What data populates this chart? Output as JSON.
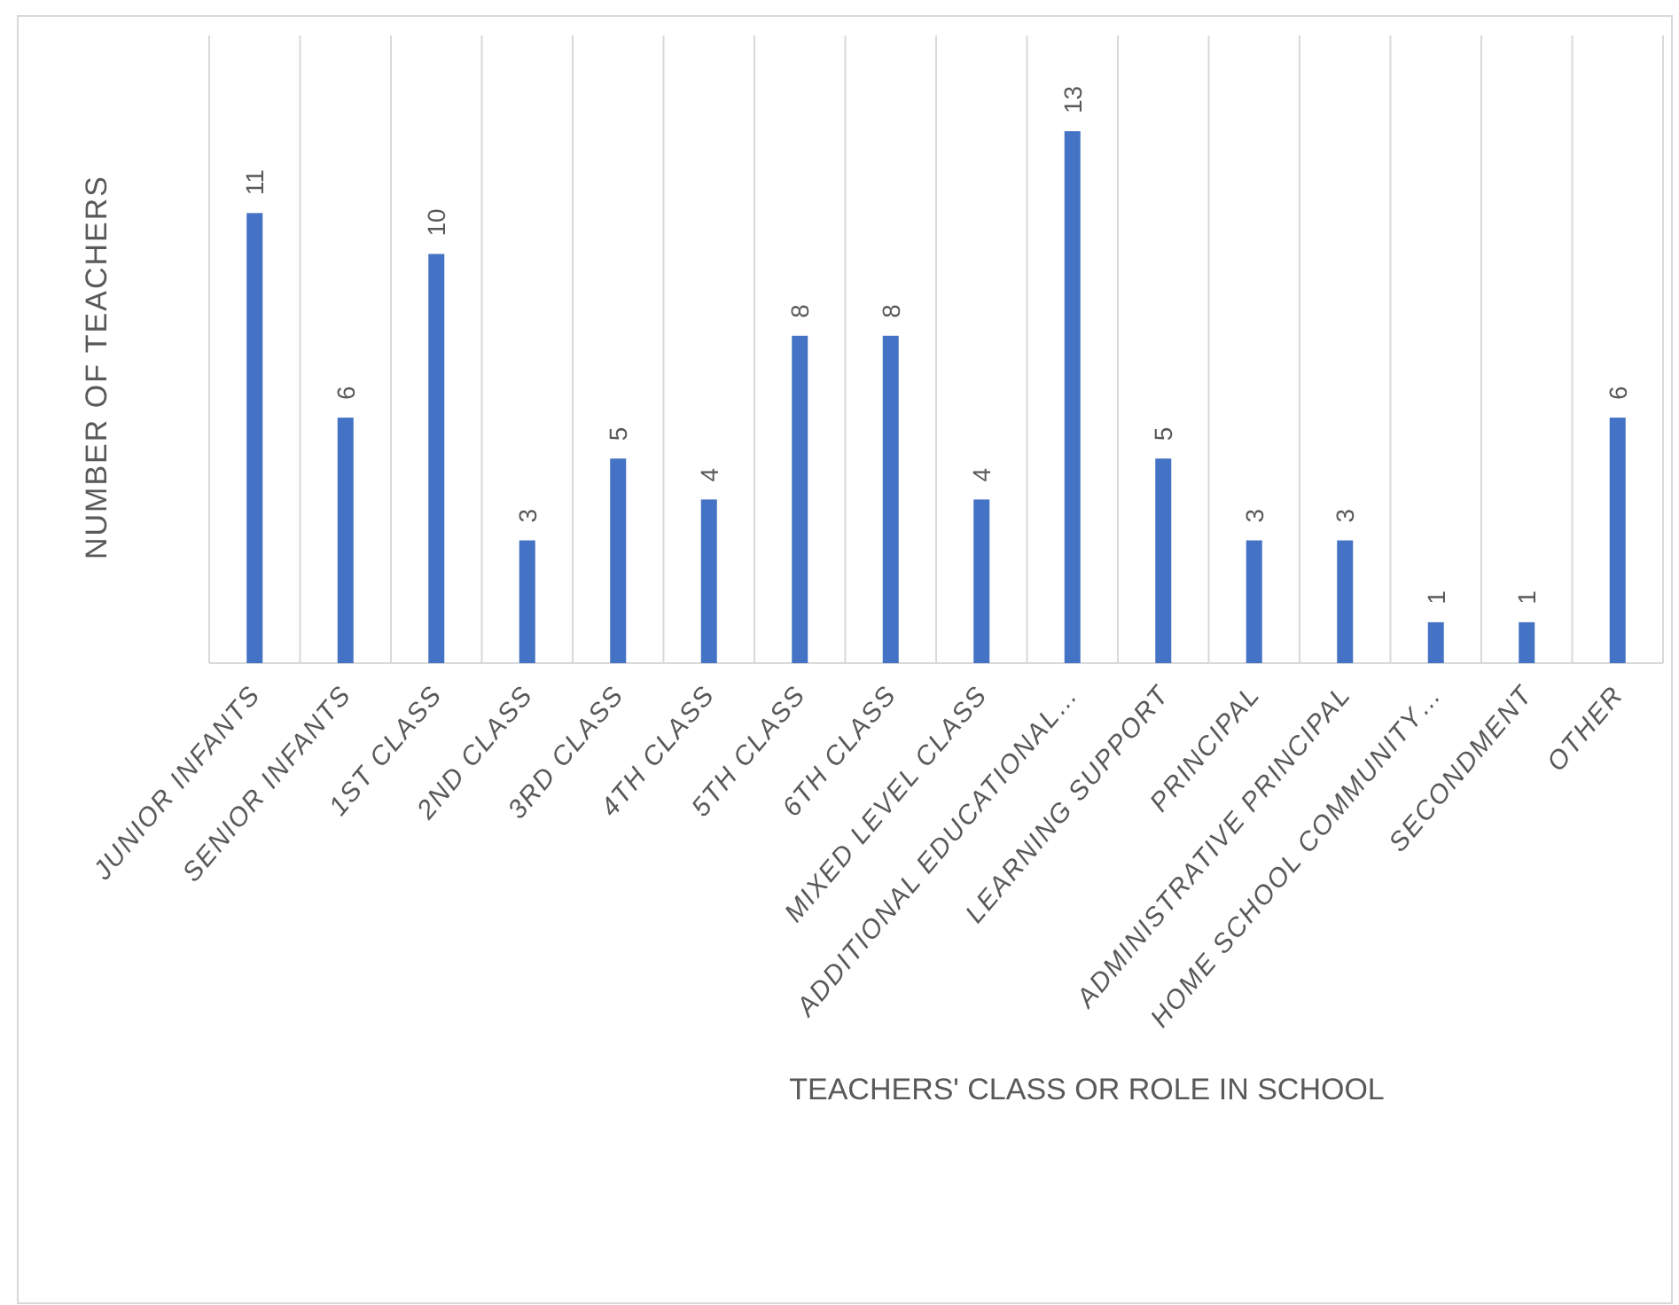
{
  "chart_data": {
    "type": "bar",
    "xlabel": "TEACHERS' CLASS OR ROLE IN SCHOOL",
    "ylabel": "NUMBER OF TEACHERS",
    "categories": [
      "JUNIOR INFANTS",
      "SENIOR INFANTS",
      "1ST CLASS",
      "2ND CLASS",
      "3RD CLASS",
      "4TH CLASS",
      "5TH CLASS",
      "6TH CLASS",
      "MIXED LEVEL CLASS",
      "ADDITIONAL EDUCATIONAL…",
      "LEARNING SUPPORT",
      "PRINCIPAL",
      "ADMINISTRATIVE PRINCIPAL",
      "HOME SCHOOL COMMUNITY…",
      "SECONDMENT",
      "OTHER"
    ],
    "values": [
      11,
      6,
      10,
      3,
      5,
      4,
      8,
      8,
      4,
      13,
      5,
      3,
      3,
      1,
      1,
      6
    ],
    "color": "#4472c4",
    "data_labels": true,
    "grid": "x"
  }
}
